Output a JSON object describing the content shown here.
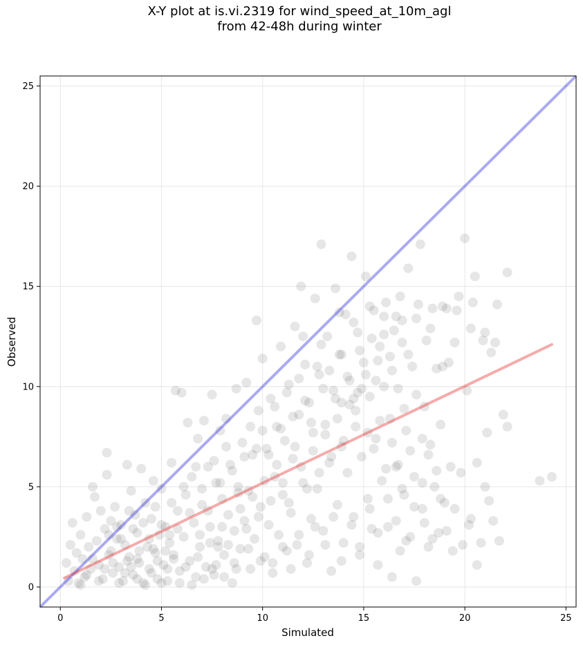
{
  "chart_data": {
    "type": "scatter",
    "title_line1": "X-Y plot at is.vi.2319 for wind_speed_at_10m_agl",
    "title_line2": "from 42-48h during winter",
    "xlabel": "Simulated",
    "ylabel": "Observed",
    "xlim": [
      -1,
      25.5
    ],
    "ylim": [
      -1,
      25.5
    ],
    "xticks": [
      0,
      5,
      10,
      15,
      20,
      25
    ],
    "yticks": [
      0,
      5,
      10,
      15,
      20,
      25
    ],
    "grid": true,
    "point_color": "#555555",
    "point_opacity": 0.15,
    "one_to_one_line": {
      "x": [
        -1,
        25.5
      ],
      "y": [
        -1,
        25.5
      ],
      "color": "#2b2bdd"
    },
    "regression_line": {
      "x": [
        0.2,
        24.3
      ],
      "y": [
        0.45,
        12.1
      ],
      "color": "#e62e2e"
    },
    "points": [
      [
        0.3,
        1.2
      ],
      [
        0.4,
        0.3
      ],
      [
        0.5,
        2.1
      ],
      [
        0.6,
        3.2
      ],
      [
        0.7,
        0.8
      ],
      [
        0.8,
        1.7
      ],
      [
        0.9,
        0.2
      ],
      [
        1.0,
        2.6
      ],
      [
        1.1,
        1.4
      ],
      [
        1.2,
        0.5
      ],
      [
        1.3,
        3.5
      ],
      [
        1.4,
        2.0
      ],
      [
        1.5,
        0.9
      ],
      [
        1.6,
        5.0
      ],
      [
        1.7,
        4.5
      ],
      [
        1.8,
        2.3
      ],
      [
        1.9,
        1.1
      ],
      [
        2.0,
        3.8
      ],
      [
        2.1,
        0.4
      ],
      [
        2.2,
        2.9
      ],
      [
        2.3,
        6.7
      ],
      [
        2.3,
        5.6
      ],
      [
        2.4,
        1.6
      ],
      [
        2.5,
        3.3
      ],
      [
        2.6,
        0.7
      ],
      [
        2.7,
        4.0
      ],
      [
        2.8,
        2.4
      ],
      [
        2.9,
        1.0
      ],
      [
        3.0,
        3.1
      ],
      [
        3.1,
        0.3
      ],
      [
        3.2,
        2.1
      ],
      [
        3.3,
        6.1
      ],
      [
        3.4,
        1.5
      ],
      [
        3.5,
        4.8
      ],
      [
        3.6,
        0.6
      ],
      [
        3.7,
        3.6
      ],
      [
        3.8,
        2.7
      ],
      [
        3.9,
        1.2
      ],
      [
        4.0,
        5.9
      ],
      [
        4.1,
        0.2
      ],
      [
        4.2,
        4.2
      ],
      [
        4.3,
        2.0
      ],
      [
        4.4,
        0.9
      ],
      [
        4.5,
        3.4
      ],
      [
        4.6,
        5.3
      ],
      [
        4.7,
        1.7
      ],
      [
        4.8,
        0.4
      ],
      [
        4.9,
        2.6
      ],
      [
        5.0,
        4.9
      ],
      [
        5.1,
        1.1
      ],
      [
        5.2,
        3.0
      ],
      [
        5.3,
        0.3
      ],
      [
        5.4,
        2.2
      ],
      [
        5.5,
        6.2
      ],
      [
        5.6,
        1.4
      ],
      [
        5.7,
        9.8
      ],
      [
        5.8,
        3.8
      ],
      [
        5.9,
        0.8
      ],
      [
        6.0,
        9.7
      ],
      [
        6.1,
        2.5
      ],
      [
        6.2,
        4.6
      ],
      [
        6.3,
        8.2
      ],
      [
        6.4,
        1.3
      ],
      [
        6.5,
        5.5
      ],
      [
        6.6,
        3.2
      ],
      [
        6.7,
        0.5
      ],
      [
        6.8,
        7.4
      ],
      [
        6.9,
        2.0
      ],
      [
        7.0,
        4.1
      ],
      [
        7.1,
        8.3
      ],
      [
        7.2,
        1.0
      ],
      [
        7.3,
        6.0
      ],
      [
        7.4,
        3.0
      ],
      [
        7.5,
        9.6
      ],
      [
        7.6,
        0.6
      ],
      [
        7.7,
        5.2
      ],
      [
        7.8,
        2.3
      ],
      [
        7.9,
        7.8
      ],
      [
        8.0,
        4.4
      ],
      [
        8.1,
        1.6
      ],
      [
        8.2,
        8.4
      ],
      [
        8.3,
        3.6
      ],
      [
        8.4,
        6.1
      ],
      [
        8.5,
        0.2
      ],
      [
        8.6,
        2.8
      ],
      [
        8.7,
        9.9
      ],
      [
        8.8,
        5.0
      ],
      [
        8.9,
        1.9
      ],
      [
        9.0,
        7.2
      ],
      [
        9.1,
        3.3
      ],
      [
        9.2,
        10.2
      ],
      [
        9.3,
        4.8
      ],
      [
        9.4,
        0.9
      ],
      [
        9.5,
        6.6
      ],
      [
        9.6,
        2.4
      ],
      [
        9.7,
        13.3
      ],
      [
        9.8,
        8.8
      ],
      [
        9.9,
        4.0
      ],
      [
        10.0,
        11.4
      ],
      [
        10.1,
        1.5
      ],
      [
        10.2,
        6.9
      ],
      [
        10.3,
        3.1
      ],
      [
        10.4,
        9.4
      ],
      [
        10.5,
        0.7
      ],
      [
        10.6,
        5.5
      ],
      [
        10.7,
        8.0
      ],
      [
        10.8,
        2.6
      ],
      [
        10.9,
        12.0
      ],
      [
        11.0,
        4.6
      ],
      [
        11.1,
        7.3
      ],
      [
        11.2,
        1.8
      ],
      [
        11.3,
        10.1
      ],
      [
        11.4,
        3.7
      ],
      [
        11.5,
        6.4
      ],
      [
        11.6,
        13.0
      ],
      [
        11.7,
        2.1
      ],
      [
        11.8,
        8.6
      ],
      [
        11.9,
        15.0
      ],
      [
        12.0,
        5.2
      ],
      [
        12.1,
        11.1
      ],
      [
        12.2,
        1.2
      ],
      [
        12.3,
        9.2
      ],
      [
        12.4,
        3.4
      ],
      [
        12.5,
        7.7
      ],
      [
        12.6,
        14.4
      ],
      [
        12.7,
        4.9
      ],
      [
        12.8,
        10.6
      ],
      [
        12.9,
        17.1
      ],
      [
        13.0,
        2.8
      ],
      [
        13.1,
        8.1
      ],
      [
        13.2,
        12.5
      ],
      [
        13.3,
        6.2
      ],
      [
        13.4,
        0.8
      ],
      [
        13.5,
        9.8
      ],
      [
        13.6,
        14.9
      ],
      [
        13.7,
        4.1
      ],
      [
        13.8,
        11.6
      ],
      [
        13.9,
        7.0
      ],
      [
        14.0,
        2.2
      ],
      [
        14.1,
        13.6
      ],
      [
        14.2,
        5.7
      ],
      [
        14.3,
        10.3
      ],
      [
        14.4,
        16.5
      ],
      [
        14.5,
        3.5
      ],
      [
        14.6,
        8.8
      ],
      [
        14.7,
        12.7
      ],
      [
        14.8,
        1.6
      ],
      [
        14.9,
        6.5
      ],
      [
        15.0,
        11.2
      ],
      [
        15.1,
        15.5
      ],
      [
        15.2,
        4.4
      ],
      [
        15.3,
        9.5
      ],
      [
        15.4,
        2.9
      ],
      [
        15.5,
        13.8
      ],
      [
        15.6,
        7.4
      ],
      [
        15.7,
        1.1
      ],
      [
        15.8,
        12.0
      ],
      [
        15.9,
        5.3
      ],
      [
        16.0,
        10.0
      ],
      [
        16.1,
        14.2
      ],
      [
        16.2,
        3.0
      ],
      [
        16.3,
        8.4
      ],
      [
        16.4,
        0.5
      ],
      [
        16.5,
        12.8
      ],
      [
        16.6,
        6.0
      ],
      [
        16.7,
        9.9
      ],
      [
        16.8,
        1.8
      ],
      [
        16.9,
        13.3
      ],
      [
        17.0,
        4.6
      ],
      [
        17.1,
        7.8
      ],
      [
        17.2,
        15.9
      ],
      [
        17.3,
        2.5
      ],
      [
        17.4,
        11.0
      ],
      [
        17.5,
        5.5
      ],
      [
        17.6,
        0.3
      ],
      [
        17.7,
        14.1
      ],
      [
        17.8,
        17.1
      ],
      [
        17.9,
        3.9
      ],
      [
        18.0,
        9.0
      ],
      [
        18.1,
        12.3
      ],
      [
        18.2,
        2.0
      ],
      [
        18.3,
        7.1
      ],
      [
        18.4,
        13.9
      ],
      [
        18.5,
        5.0
      ],
      [
        18.6,
        10.9
      ],
      [
        18.7,
        2.7
      ],
      [
        18.8,
        8.1
      ],
      [
        18.9,
        14.0
      ],
      [
        19.0,
        4.2
      ],
      [
        19.2,
        11.2
      ],
      [
        19.4,
        1.8
      ],
      [
        19.6,
        13.8
      ],
      [
        19.8,
        5.7
      ],
      [
        20.0,
        17.4
      ],
      [
        20.1,
        9.8
      ],
      [
        20.2,
        3.1
      ],
      [
        20.3,
        12.9
      ],
      [
        20.5,
        15.5
      ],
      [
        20.6,
        6.2
      ],
      [
        20.8,
        2.2
      ],
      [
        21.0,
        12.7
      ],
      [
        21.1,
        7.7
      ],
      [
        21.2,
        4.3
      ],
      [
        21.3,
        11.7
      ],
      [
        21.4,
        3.3
      ],
      [
        21.5,
        12.2
      ],
      [
        21.6,
        14.1
      ],
      [
        21.7,
        2.3
      ],
      [
        21.9,
        8.6
      ],
      [
        22.1,
        15.7
      ],
      [
        22.1,
        8.0
      ],
      [
        23.7,
        5.3
      ],
      [
        24.3,
        5.5
      ],
      [
        3.5,
        1.0
      ],
      [
        3.8,
        0.4
      ],
      [
        4.2,
        0.1
      ],
      [
        4.5,
        0.7
      ],
      [
        4.8,
        1.3
      ],
      [
        5.0,
        0.2
      ],
      [
        5.3,
        0.9
      ],
      [
        5.6,
        1.6
      ],
      [
        5.9,
        0.2
      ],
      [
        6.2,
        1.0
      ],
      [
        6.5,
        0.1
      ],
      [
        6.8,
        1.5
      ],
      [
        7.1,
        0.4
      ],
      [
        7.4,
        2.2
      ],
      [
        7.7,
        1.1
      ],
      [
        8.0,
        3.0
      ],
      [
        8.3,
        2.1
      ],
      [
        8.6,
        1.2
      ],
      [
        8.9,
        3.9
      ],
      [
        9.2,
        2.9
      ],
      [
        9.5,
        4.5
      ],
      [
        9.8,
        3.5
      ],
      [
        10.1,
        5.3
      ],
      [
        10.4,
        4.3
      ],
      [
        10.7,
        6.1
      ],
      [
        11.0,
        5.2
      ],
      [
        11.3,
        4.2
      ],
      [
        11.6,
        7.0
      ],
      [
        11.9,
        6.0
      ],
      [
        12.2,
        4.9
      ],
      [
        12.5,
        6.8
      ],
      [
        12.8,
        5.7
      ],
      [
        13.1,
        7.6
      ],
      [
        13.4,
        6.5
      ],
      [
        13.7,
        8.4
      ],
      [
        14.0,
        7.3
      ],
      [
        14.3,
        9.1
      ],
      [
        14.6,
        8.0
      ],
      [
        14.9,
        9.9
      ],
      [
        15.2,
        7.7
      ],
      [
        15.5,
        6.9
      ],
      [
        15.8,
        8.3
      ],
      [
        16.1,
        5.9
      ],
      [
        16.4,
        7.2
      ],
      [
        16.7,
        6.1
      ],
      [
        17.0,
        8.9
      ],
      [
        17.3,
        6.8
      ],
      [
        17.6,
        9.6
      ],
      [
        17.9,
        7.4
      ],
      [
        18.2,
        6.6
      ],
      [
        2.5,
        1.8
      ],
      [
        2.8,
        3.0
      ],
      [
        3.0,
        2.4
      ],
      [
        3.3,
        1.3
      ],
      [
        3.6,
        2.9
      ],
      [
        3.9,
        1.8
      ],
      [
        4.1,
        3.2
      ],
      [
        4.4,
        2.4
      ],
      [
        4.7,
        4.0
      ],
      [
        5.0,
        3.1
      ],
      [
        5.2,
        1.8
      ],
      [
        5.5,
        4.2
      ],
      [
        5.8,
        2.9
      ],
      [
        6.1,
        5.0
      ],
      [
        6.4,
        3.7
      ],
      [
        6.7,
        6.0
      ],
      [
        7.0,
        4.9
      ],
      [
        7.3,
        3.8
      ],
      [
        7.6,
        6.3
      ],
      [
        7.9,
        5.2
      ],
      [
        8.2,
        7.0
      ],
      [
        8.5,
        5.8
      ],
      [
        8.8,
        4.7
      ],
      [
        9.1,
        6.5
      ],
      [
        9.4,
        8.0
      ],
      [
        9.7,
        6.9
      ],
      [
        10.0,
        7.8
      ],
      [
        10.3,
        6.6
      ],
      [
        10.6,
        9.0
      ],
      [
        10.9,
        7.9
      ],
      [
        11.2,
        9.7
      ],
      [
        11.5,
        8.5
      ],
      [
        11.8,
        10.4
      ],
      [
        12.1,
        9.3
      ],
      [
        12.4,
        8.2
      ],
      [
        12.7,
        11.0
      ],
      [
        13.0,
        9.9
      ],
      [
        13.3,
        10.8
      ],
      [
        13.6,
        9.4
      ],
      [
        13.9,
        11.6
      ],
      [
        14.2,
        10.5
      ],
      [
        14.5,
        9.4
      ],
      [
        14.8,
        11.8
      ],
      [
        15.1,
        10.6
      ],
      [
        15.4,
        12.4
      ],
      [
        15.7,
        11.3
      ],
      [
        16.0,
        12.6
      ],
      [
        16.3,
        11.5
      ],
      [
        16.6,
        13.5
      ],
      [
        16.9,
        12.2
      ],
      [
        1.0,
        0.1
      ],
      [
        1.3,
        0.6
      ],
      [
        1.6,
        1.4
      ],
      [
        1.9,
        0.3
      ],
      [
        2.2,
        0.9
      ],
      [
        2.4,
        2.6
      ],
      [
        2.6,
        1.2
      ],
      [
        2.9,
        0.2
      ],
      [
        3.2,
        0.7
      ],
      [
        3.4,
        3.8
      ],
      [
        10.5,
        1.2
      ],
      [
        11.0,
        2.0
      ],
      [
        11.4,
        0.9
      ],
      [
        11.8,
        2.6
      ],
      [
        12.3,
        1.6
      ],
      [
        12.6,
        3.0
      ],
      [
        13.1,
        2.1
      ],
      [
        13.5,
        3.5
      ],
      [
        13.9,
        1.3
      ],
      [
        14.4,
        3.1
      ],
      [
        14.8,
        2.0
      ],
      [
        15.3,
        3.9
      ],
      [
        15.7,
        2.7
      ],
      [
        16.2,
        4.4
      ],
      [
        16.6,
        3.3
      ],
      [
        17.1,
        2.3
      ],
      [
        17.5,
        4.0
      ],
      [
        18.0,
        3.2
      ],
      [
        18.4,
        2.4
      ],
      [
        18.8,
        4.4
      ],
      [
        19.1,
        2.8
      ],
      [
        19.5,
        3.9
      ],
      [
        19.9,
        2.1
      ],
      [
        20.3,
        3.4
      ],
      [
        20.6,
        1.1
      ],
      [
        21.0,
        5.0
      ],
      [
        19.3,
        6.0
      ],
      [
        18.6,
        5.8
      ],
      [
        17.9,
        5.2
      ],
      [
        16.9,
        4.9
      ],
      [
        7.5,
        0.9
      ],
      [
        8.1,
        0.5
      ],
      [
        8.7,
        0.9
      ],
      [
        9.3,
        1.9
      ],
      [
        9.9,
        1.3
      ],
      [
        6.9,
        2.6
      ],
      [
        7.8,
        2.0
      ],
      [
        5.4,
        2.6
      ],
      [
        4.6,
        1.9
      ],
      [
        3.8,
        1.4
      ],
      [
        12.0,
        12.5
      ],
      [
        12.9,
        12.1
      ],
      [
        13.8,
        13.7
      ],
      [
        14.5,
        13.2
      ],
      [
        15.3,
        14.0
      ],
      [
        16.0,
        13.5
      ],
      [
        16.8,
        14.5
      ],
      [
        17.6,
        13.4
      ],
      [
        18.3,
        12.9
      ],
      [
        19.1,
        13.9
      ],
      [
        19.7,
        14.5
      ],
      [
        20.4,
        14.2
      ],
      [
        19.5,
        12.2
      ],
      [
        20.9,
        12.3
      ],
      [
        18.9,
        11.0
      ],
      [
        17.2,
        11.6
      ],
      [
        16.4,
        10.8
      ],
      [
        15.6,
        10.3
      ],
      [
        14.7,
        9.7
      ],
      [
        13.9,
        9.2
      ]
    ]
  }
}
